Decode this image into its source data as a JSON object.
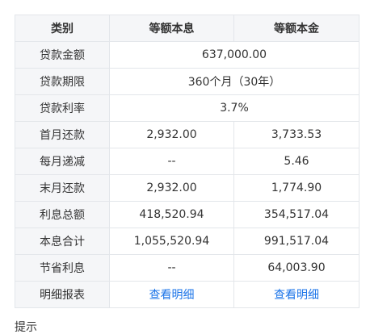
{
  "table": {
    "headers": [
      "类别",
      "等额本息",
      "等额本金"
    ],
    "rows": {
      "loan_amount": {
        "label": "贷款金额",
        "value": "637,000.00"
      },
      "loan_term": {
        "label": "贷款期限",
        "value": "360个月（30年）"
      },
      "interest_rate": {
        "label": "贷款利率",
        "value": "3.7%"
      },
      "first_month": {
        "label": "首月还款",
        "equal_installment": "2,932.00",
        "equal_principal": "3,733.53"
      },
      "monthly_decrease": {
        "label": "每月递减",
        "equal_installment": "--",
        "equal_principal": "5.46"
      },
      "last_month": {
        "label": "末月还款",
        "equal_installment": "2,932.00",
        "equal_principal": "1,774.90"
      },
      "total_interest": {
        "label": "利息总额",
        "equal_installment": "418,520.94",
        "equal_principal": "354,517.04"
      },
      "total_payment": {
        "label": "本息合计",
        "equal_installment": "1,055,520.94",
        "equal_principal": "991,517.04"
      },
      "interest_saved": {
        "label": "节省利息",
        "equal_installment": "--",
        "equal_principal": "64,003.90"
      },
      "details": {
        "label": "明细报表",
        "equal_installment": "查看明细",
        "equal_principal": "查看明细"
      }
    }
  },
  "partial_text": "提示"
}
